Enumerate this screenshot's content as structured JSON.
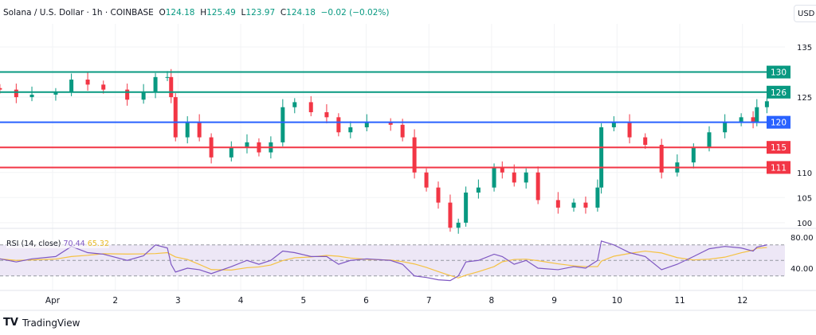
{
  "header": {
    "symbol": "Solana / U.S. Dollar · 1h · COINBASE",
    "o_label": "O",
    "o": "124.18",
    "h_label": "H",
    "h": "125.49",
    "l_label": "L",
    "l": "123.97",
    "c_label": "C",
    "c": "124.18",
    "change": "−0.02 (−0.02%)"
  },
  "currency_button": "USD",
  "brand": "TradingView",
  "colors": {
    "up": "#089981",
    "down": "#f23645",
    "blue": "#2962ff",
    "rsi": "#7e57c2",
    "rsi_ma": "#f5c242",
    "rsi_band": "#ede7f6"
  },
  "chart_data": {
    "type": "candlestick",
    "x_unit": "day of April (fractional)",
    "x_ticks": [
      {
        "v": 1,
        "label": "Apr"
      },
      {
        "v": 2,
        "label": "2"
      },
      {
        "v": 3,
        "label": "3"
      },
      {
        "v": 4,
        "label": "4"
      },
      {
        "v": 5,
        "label": "5"
      },
      {
        "v": 6,
        "label": "6"
      },
      {
        "v": 7,
        "label": "7"
      },
      {
        "v": 8,
        "label": "8"
      },
      {
        "v": 9,
        "label": "9"
      },
      {
        "v": 10,
        "label": "10"
      },
      {
        "v": 11,
        "label": "11"
      },
      {
        "v": 12,
        "label": "12"
      }
    ],
    "y_ticks": [
      100,
      105,
      110,
      125,
      135
    ],
    "ylim": [
      97,
      140
    ],
    "levels": [
      {
        "value": 130,
        "label": "130",
        "color": "#089981"
      },
      {
        "value": 126,
        "label": "126",
        "color": "#089981"
      },
      {
        "value": 120,
        "label": "120",
        "color": "#2962ff"
      },
      {
        "value": 115,
        "label": "115",
        "color": "#f23645"
      },
      {
        "value": 111,
        "label": "111",
        "color": "#f23645"
      }
    ],
    "closes": [
      [
        0.16,
        126.5
      ],
      [
        0.42,
        125
      ],
      [
        0.67,
        125.5
      ],
      [
        1.05,
        126
      ],
      [
        1.3,
        128.5
      ],
      [
        1.56,
        127.5
      ],
      [
        1.81,
        126.5
      ],
      [
        2.19,
        124.5
      ],
      [
        2.45,
        126
      ],
      [
        2.64,
        129
      ],
      [
        2.83,
        129
      ],
      [
        2.89,
        125
      ],
      [
        2.96,
        117
      ],
      [
        3.15,
        120
      ],
      [
        3.34,
        117
      ],
      [
        3.53,
        113
      ],
      [
        3.85,
        115
      ],
      [
        4.1,
        116
      ],
      [
        4.29,
        114
      ],
      [
        4.48,
        116
      ],
      [
        4.67,
        123
      ],
      [
        4.86,
        124
      ],
      [
        5.12,
        122
      ],
      [
        5.37,
        121
      ],
      [
        5.56,
        118
      ],
      [
        5.75,
        119
      ],
      [
        6.01,
        120
      ],
      [
        6.39,
        119.5
      ],
      [
        6.58,
        117
      ],
      [
        6.77,
        110
      ],
      [
        6.96,
        107
      ],
      [
        7.15,
        104
      ],
      [
        7.34,
        99
      ],
      [
        7.47,
        100
      ],
      [
        7.59,
        106
      ],
      [
        7.79,
        107
      ],
      [
        8.04,
        111
      ],
      [
        8.17,
        110
      ],
      [
        8.36,
        108
      ],
      [
        8.55,
        110
      ],
      [
        8.74,
        104.5
      ],
      [
        9.06,
        103
      ],
      [
        9.31,
        104
      ],
      [
        9.5,
        103
      ],
      [
        9.69,
        107
      ],
      [
        9.75,
        119
      ],
      [
        9.95,
        120
      ],
      [
        10.2,
        117
      ],
      [
        10.45,
        115.5
      ],
      [
        10.71,
        110
      ],
      [
        10.96,
        112
      ],
      [
        11.22,
        115
      ],
      [
        11.47,
        118
      ],
      [
        11.72,
        120
      ],
      [
        11.98,
        121
      ],
      [
        12.17,
        120
      ],
      [
        12.23,
        123
      ],
      [
        12.39,
        124.18
      ]
    ],
    "rsi": {
      "label": "RSI (14, close)",
      "value": "70.44",
      "ma_value": "65.32",
      "ticks": [
        "80.00",
        "40.00"
      ],
      "bands": [
        70,
        50,
        30
      ],
      "values": [
        52,
        48,
        52,
        55,
        68,
        60,
        58,
        50,
        56,
        70,
        66,
        45,
        35,
        40,
        38,
        33,
        42,
        50,
        45,
        50,
        62,
        60,
        55,
        55,
        45,
        50,
        52,
        50,
        45,
        30,
        28,
        25,
        24,
        30,
        48,
        50,
        58,
        55,
        45,
        50,
        40,
        38,
        42,
        40,
        50,
        75,
        70,
        60,
        55,
        38,
        45,
        55,
        65,
        68,
        66,
        62,
        67,
        70
      ]
    }
  }
}
